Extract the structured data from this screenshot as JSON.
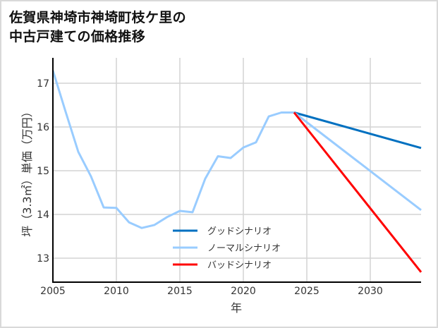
{
  "title": {
    "line1": "佐賀県神埼市神埼町枝ケ里の",
    "line2": "中古戸建ての価格推移"
  },
  "chart_data": {
    "type": "line",
    "title": "佐賀県神埼市神埼町枝ケ里の中古戸建ての価格推移",
    "xlabel": "年",
    "ylabel": "坪（3.3㎡）単価（万円）",
    "xlim": [
      2005,
      2034
    ],
    "ylim": [
      12.5,
      17.6
    ],
    "xticks": [
      2005,
      2010,
      2015,
      2020,
      2025,
      2030
    ],
    "yticks": [
      13,
      14,
      15,
      16,
      17
    ],
    "grid": true,
    "legend_position": "lower center",
    "series": [
      {
        "name": "ノーマルシナリオ",
        "role": "historical",
        "color": "#99ccff",
        "x": [
          2005,
          2006,
          2007,
          2008,
          2009,
          2010,
          2011,
          2012,
          2013,
          2014,
          2015,
          2016,
          2017,
          2018,
          2019,
          2020,
          2021,
          2022,
          2023,
          2024
        ],
        "values": [
          17.29,
          16.35,
          15.43,
          14.87,
          14.16,
          14.15,
          13.82,
          13.69,
          13.76,
          13.94,
          14.08,
          14.05,
          14.82,
          15.33,
          15.29,
          15.53,
          15.65,
          16.24,
          16.33,
          16.33
        ]
      },
      {
        "name": "グッドシナリオ",
        "role": "forecast",
        "color": "#0070c0",
        "x": [
          2024,
          2034
        ],
        "values": [
          16.33,
          15.52
        ]
      },
      {
        "name": "ノーマルシナリオ",
        "role": "forecast",
        "color": "#99ccff",
        "x": [
          2024,
          2034
        ],
        "values": [
          16.33,
          14.1
        ]
      },
      {
        "name": "バッドシナリオ",
        "role": "forecast",
        "color": "#ff0000",
        "x": [
          2024,
          2034
        ],
        "values": [
          16.33,
          12.68
        ]
      }
    ],
    "legend": [
      {
        "label": "グッドシナリオ",
        "color": "#0070c0"
      },
      {
        "label": "ノーマルシナリオ",
        "color": "#99ccff"
      },
      {
        "label": "バッドシナリオ",
        "color": "#ff0000"
      }
    ]
  },
  "colors": {
    "grid": "#d3d3d3",
    "axis": "#000000",
    "border": "#d9d9d9"
  }
}
